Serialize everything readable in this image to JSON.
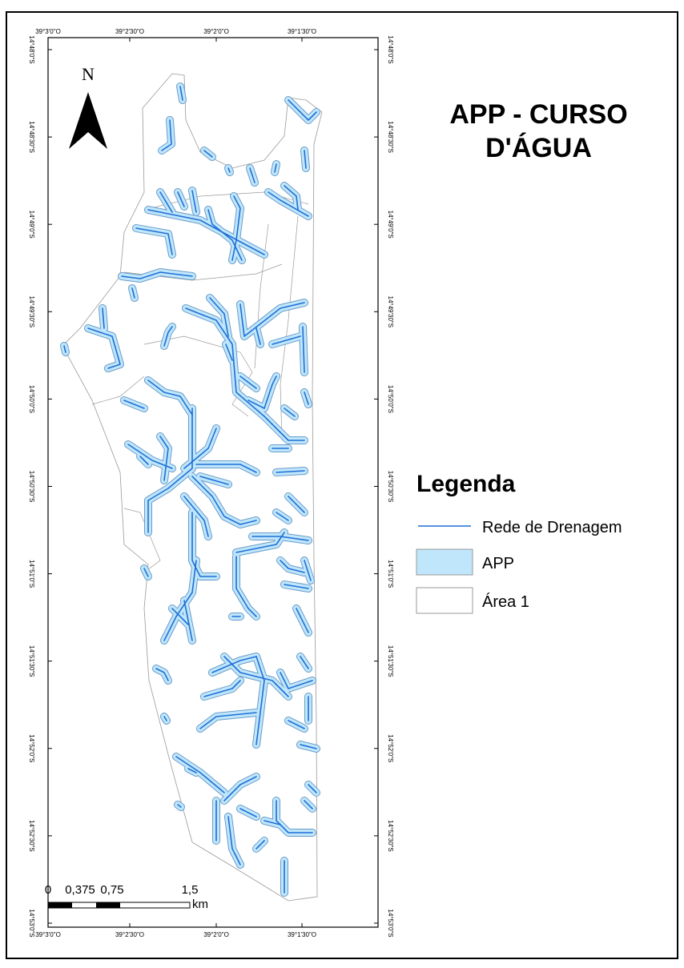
{
  "title": "APP - CURSO D'ÁGUA",
  "north": "N",
  "legend": {
    "title": "Legenda",
    "items": [
      "Rede de Drenagem",
      "APP",
      "Área 1"
    ]
  },
  "scale_bar": {
    "labels": [
      "0",
      "0,375",
      "0,75",
      "1,5"
    ],
    "unit": "km"
  },
  "graticule": {
    "longitudes": [
      "39°3'0\"O",
      "39°2'30\"O",
      "39°2'0\"O",
      "39°1'30\"O"
    ],
    "latitudes": [
      "14°48'0\"S",
      "14°48'30\"S",
      "14°49'0\"S",
      "14°49'30\"S",
      "14°50'0\"S",
      "14°50'30\"S",
      "14°51'0\"S",
      "14°51'30\"S",
      "14°52'0\"S",
      "14°52'30\"S",
      "14°53'0\"S"
    ]
  }
}
